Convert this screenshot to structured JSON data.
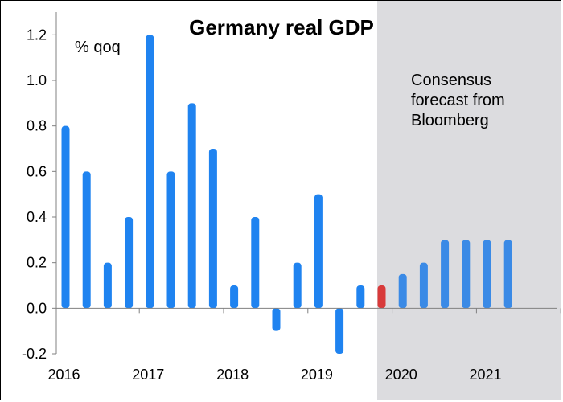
{
  "chart_data": {
    "type": "bar",
    "title": "Germany real GDP",
    "ylabel": "% qoq",
    "ylim": [
      -0.2,
      1.3
    ],
    "yticks": [
      -0.2,
      0.0,
      0.2,
      0.4,
      0.6,
      0.8,
      1.0,
      1.2
    ],
    "ytick_labels": [
      "-0.2",
      "0.0",
      "0.2",
      "0.4",
      "0.6",
      "0.8",
      "1.0",
      "1.2"
    ],
    "year_labels": [
      "2016",
      "2017",
      "2018",
      "2019",
      "2020",
      "2021"
    ],
    "forecast_annotation": [
      "Consensus",
      "forecast from",
      "Bloomberg"
    ],
    "forecast_start_index": 15,
    "categories": [
      "2016 Q1",
      "2016 Q2",
      "2016 Q3",
      "2016 Q4",
      "2017 Q1",
      "2017 Q2",
      "2017 Q3",
      "2017 Q4",
      "2018 Q1",
      "2018 Q2",
      "2018 Q3",
      "2018 Q4",
      "2019 Q1",
      "2019 Q2",
      "2019 Q3",
      "2019 Q4",
      "2020 Q1",
      "2020 Q2",
      "2020 Q3",
      "2020 Q4",
      "2021 Q1",
      "2021 Q2"
    ],
    "values": [
      0.8,
      0.6,
      0.2,
      0.4,
      1.2,
      0.6,
      0.9,
      0.7,
      0.1,
      0.4,
      -0.1,
      0.2,
      0.5,
      -0.2,
      0.1,
      0.1,
      0.15,
      0.2,
      0.3,
      0.3,
      0.3,
      0.3
    ],
    "highlight_index": 15,
    "colors": {
      "actual": "#1f83f0",
      "highlight": "#d83a3a",
      "forecast": "#3a8ae6",
      "forecast_shade": "#dcdcdf"
    }
  }
}
